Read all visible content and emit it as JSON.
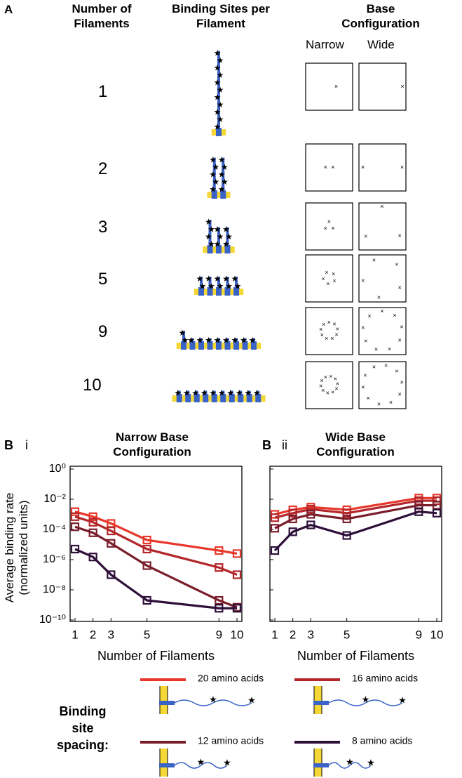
{
  "panel_a": {
    "label": "A",
    "headers": [
      "Number of Filaments",
      "Binding Sites per Filament",
      "Base Configuration"
    ],
    "subheaders": [
      "Narrow",
      "Wide"
    ],
    "rows": [
      1,
      2,
      3,
      5,
      9,
      10
    ]
  },
  "legend": {
    "title": "Binding site spacing:"
  },
  "chart_data": [
    {
      "type": "line",
      "panel": "B",
      "subpanel": "i",
      "title": "Narrow Base Configuration",
      "x_label": "Number of Filaments",
      "y_label": "Average binding rate (normalized units)",
      "log_y": true,
      "x": [
        1,
        2,
        3,
        5,
        9,
        10
      ],
      "xlim": [
        1,
        10
      ],
      "xticks": [
        1,
        2,
        3,
        5,
        9,
        10
      ],
      "ylim": [
        1e-10,
        1
      ],
      "yticks": [
        {
          "value": 1,
          "label": "10⁰"
        },
        {
          "value": 0.01,
          "label": "10⁻²"
        },
        {
          "value": 0.0001,
          "label": "10⁻⁴"
        },
        {
          "value": 1e-06,
          "label": "10⁻⁶"
        },
        {
          "value": 1e-08,
          "label": "10⁻⁸"
        },
        {
          "value": 1e-10,
          "label": "10⁻¹⁰"
        }
      ],
      "series": [
        {
          "name": "20 amino acids",
          "color": "#e8372a",
          "values": [
            0.0015,
            0.0007,
            0.00025,
            2e-05,
            4e-06,
            2.5e-06
          ]
        },
        {
          "name": "16 amino acids",
          "color": "#b3262a",
          "values": [
            0.0007,
            0.0003,
            8e-05,
            5e-06,
            3e-07,
            1e-07
          ]
        },
        {
          "name": "12 amino acids",
          "color": "#7a1d2a",
          "values": [
            0.00015,
            6e-05,
            1.2e-05,
            4e-07,
            2e-09,
            7e-10
          ]
        },
        {
          "name": "8 amino acids",
          "color": "#2e0f3a",
          "values": [
            5e-06,
            1.5e-06,
            1e-07,
            2e-09,
            6e-10,
            6e-10
          ]
        }
      ]
    },
    {
      "type": "line",
      "panel": "B",
      "subpanel": "ii",
      "title": "Wide Base Configuration",
      "x_label": "Number of Filaments",
      "log_y": true,
      "x": [
        1,
        2,
        3,
        5,
        9,
        10
      ],
      "xlim": [
        1,
        10
      ],
      "xticks": [
        1,
        2,
        3,
        5,
        9,
        10
      ],
      "ylim": [
        1e-10,
        1
      ],
      "yticks": [
        1,
        0.01,
        0.0001,
        1e-06,
        1e-08,
        1e-10
      ],
      "ytick_labels_shown": false,
      "series": [
        {
          "name": "20 amino acids",
          "color": "#e8372a",
          "values": [
            0.001,
            0.002,
            0.003,
            0.002,
            0.012,
            0.012
          ]
        },
        {
          "name": "16 amino acids",
          "color": "#b3262a",
          "values": [
            0.0006,
            0.0012,
            0.0022,
            0.0012,
            0.008,
            0.008
          ]
        },
        {
          "name": "12 amino acids",
          "color": "#7a1d2a",
          "values": [
            0.00012,
            0.0005,
            0.001,
            0.0005,
            0.004,
            0.004
          ]
        },
        {
          "name": "8 amino acids",
          "color": "#2e0f3a",
          "values": [
            4e-06,
            7e-05,
            0.0002,
            4e-05,
            0.0015,
            0.0012
          ]
        }
      ]
    }
  ]
}
